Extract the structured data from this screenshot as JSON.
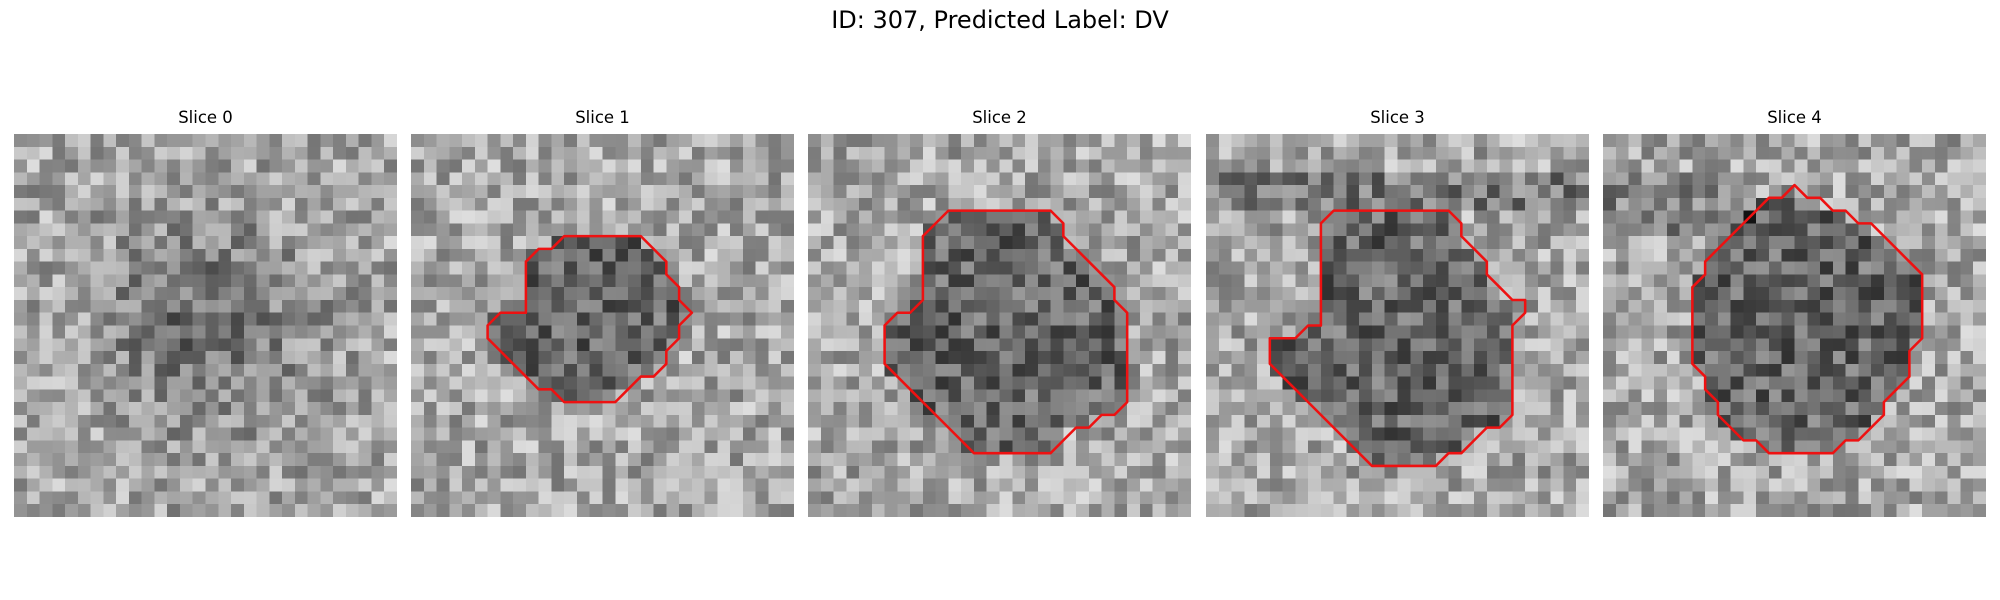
{
  "figure": {
    "title": "ID: 307, Predicted Label: DV"
  },
  "panels": [
    {
      "title": "Slice 0",
      "seed": 11,
      "has_contour": false,
      "contour": []
    },
    {
      "title": "Slice 1",
      "seed": 23,
      "has_contour": true,
      "contour": [
        [
          15,
          8
        ],
        [
          18,
          8
        ],
        [
          19,
          9
        ],
        [
          20,
          10
        ],
        [
          20,
          11
        ],
        [
          21,
          12
        ],
        [
          21,
          13
        ],
        [
          22,
          14
        ],
        [
          21,
          15
        ],
        [
          21,
          16
        ],
        [
          20,
          17
        ],
        [
          20,
          18
        ],
        [
          19,
          19
        ],
        [
          18,
          19
        ],
        [
          17,
          20
        ],
        [
          16,
          21
        ],
        [
          13,
          21
        ],
        [
          12,
          21
        ],
        [
          11,
          20
        ],
        [
          10,
          20
        ],
        [
          9,
          19
        ],
        [
          8,
          18
        ],
        [
          7,
          17
        ],
        [
          6,
          16
        ],
        [
          6,
          15
        ],
        [
          7,
          14
        ],
        [
          8,
          14
        ],
        [
          9,
          14
        ],
        [
          9,
          13
        ],
        [
          9,
          12
        ],
        [
          9,
          11
        ],
        [
          9,
          10
        ],
        [
          10,
          9
        ],
        [
          11,
          9
        ],
        [
          12,
          8
        ]
      ]
    },
    {
      "title": "Slice 2",
      "seed": 37,
      "has_contour": true,
      "contour": [
        [
          12,
          6
        ],
        [
          19,
          6
        ],
        [
          20,
          7
        ],
        [
          20,
          8
        ],
        [
          21,
          9
        ],
        [
          22,
          10
        ],
        [
          23,
          11
        ],
        [
          24,
          12
        ],
        [
          24,
          13
        ],
        [
          25,
          14
        ],
        [
          25,
          15
        ],
        [
          25,
          16
        ],
        [
          25,
          17
        ],
        [
          25,
          18
        ],
        [
          25,
          19
        ],
        [
          25,
          20
        ],
        [
          25,
          21
        ],
        [
          24,
          22
        ],
        [
          23,
          22
        ],
        [
          22,
          23
        ],
        [
          21,
          23
        ],
        [
          20,
          24
        ],
        [
          19,
          25
        ],
        [
          13,
          25
        ],
        [
          12,
          24
        ],
        [
          11,
          23
        ],
        [
          10,
          22
        ],
        [
          9,
          21
        ],
        [
          8,
          20
        ],
        [
          7,
          19
        ],
        [
          6,
          18
        ],
        [
          6,
          17
        ],
        [
          6,
          16
        ],
        [
          6,
          15
        ],
        [
          7,
          14
        ],
        [
          8,
          14
        ],
        [
          9,
          13
        ],
        [
          9,
          12
        ],
        [
          9,
          11
        ],
        [
          9,
          10
        ],
        [
          9,
          9
        ],
        [
          9,
          8
        ],
        [
          10,
          7
        ],
        [
          11,
          6
        ]
      ]
    },
    {
      "title": "Slice 3",
      "seed": 51,
      "has_contour": true,
      "contour": [
        [
          10,
          6
        ],
        [
          19,
          6
        ],
        [
          20,
          7
        ],
        [
          20,
          8
        ],
        [
          21,
          9
        ],
        [
          22,
          10
        ],
        [
          22,
          11
        ],
        [
          23,
          12
        ],
        [
          24,
          13
        ],
        [
          25,
          13
        ],
        [
          25,
          14
        ],
        [
          24,
          15
        ],
        [
          24,
          16
        ],
        [
          24,
          17
        ],
        [
          24,
          18
        ],
        [
          24,
          19
        ],
        [
          24,
          20
        ],
        [
          24,
          21
        ],
        [
          24,
          22
        ],
        [
          23,
          23
        ],
        [
          22,
          23
        ],
        [
          21,
          24
        ],
        [
          20,
          25
        ],
        [
          19,
          25
        ],
        [
          18,
          26
        ],
        [
          13,
          26
        ],
        [
          12,
          25
        ],
        [
          11,
          24
        ],
        [
          10,
          23
        ],
        [
          9,
          22
        ],
        [
          8,
          21
        ],
        [
          7,
          20
        ],
        [
          6,
          19
        ],
        [
          5,
          18
        ],
        [
          5,
          17
        ],
        [
          5,
          16
        ],
        [
          6,
          16
        ],
        [
          7,
          16
        ],
        [
          8,
          15
        ],
        [
          9,
          15
        ],
        [
          9,
          14
        ],
        [
          9,
          13
        ],
        [
          9,
          12
        ],
        [
          9,
          11
        ],
        [
          9,
          10
        ],
        [
          9,
          9
        ],
        [
          9,
          8
        ],
        [
          9,
          7
        ]
      ]
    },
    {
      "title": "Slice 4",
      "seed": 67,
      "has_contour": true,
      "contour": [
        [
          16,
          5
        ],
        [
          17,
          5
        ],
        [
          18,
          6
        ],
        [
          19,
          6
        ],
        [
          20,
          7
        ],
        [
          21,
          7
        ],
        [
          22,
          8
        ],
        [
          23,
          9
        ],
        [
          24,
          10
        ],
        [
          25,
          11
        ],
        [
          25,
          12
        ],
        [
          25,
          13
        ],
        [
          25,
          14
        ],
        [
          25,
          15
        ],
        [
          25,
          16
        ],
        [
          24,
          17
        ],
        [
          24,
          18
        ],
        [
          24,
          19
        ],
        [
          23,
          20
        ],
        [
          22,
          21
        ],
        [
          22,
          22
        ],
        [
          21,
          23
        ],
        [
          20,
          24
        ],
        [
          19,
          24
        ],
        [
          18,
          25
        ],
        [
          13,
          25
        ],
        [
          12,
          24
        ],
        [
          11,
          24
        ],
        [
          10,
          23
        ],
        [
          9,
          22
        ],
        [
          9,
          21
        ],
        [
          8,
          20
        ],
        [
          8,
          19
        ],
        [
          7,
          18
        ],
        [
          7,
          17
        ],
        [
          7,
          16
        ],
        [
          7,
          15
        ],
        [
          7,
          14
        ],
        [
          7,
          13
        ],
        [
          7,
          12
        ],
        [
          8,
          11
        ],
        [
          8,
          10
        ],
        [
          9,
          9
        ],
        [
          10,
          8
        ],
        [
          11,
          7
        ],
        [
          12,
          6
        ],
        [
          13,
          5
        ],
        [
          14,
          5
        ],
        [
          15,
          4
        ]
      ]
    }
  ],
  "colors": {
    "contour": "#ee1111",
    "background": "#ffffff"
  }
}
